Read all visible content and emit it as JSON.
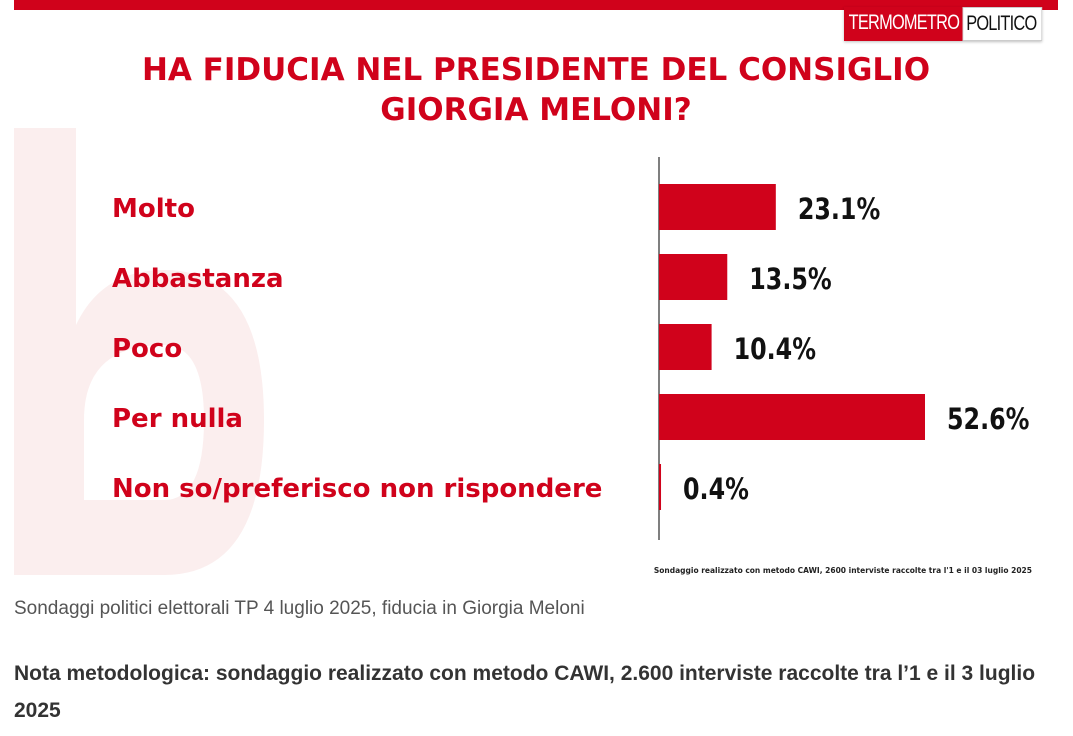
{
  "logo": {
    "part1": "TERMOMETRO",
    "part2": "POLITICO"
  },
  "chart_data": {
    "type": "bar",
    "orientation": "horizontal",
    "title_lines": [
      "HA FIDUCIA NEL PRESIDENTE DEL CONSIGLIO",
      "GIORGIA MELONI?"
    ],
    "categories": [
      "Molto",
      "Abbastanza",
      "Poco",
      "Per nulla",
      "Non so/preferisco non rispondere"
    ],
    "values": [
      23.1,
      13.5,
      10.4,
      52.6,
      0.4
    ],
    "value_labels": [
      "23.1%",
      "13.5%",
      "10.4%",
      "52.6%",
      "0.4%"
    ],
    "xlim": [
      0,
      60
    ],
    "unit": "%",
    "bar_color": "#d0021b",
    "label_color": "#d0021b",
    "source_note": "Sondaggio realizzato con metodo CAWI, 2600 interviste raccolte tra l'1 e il 03 luglio 2025"
  },
  "caption": "Sondaggi politici elettorali TP 4 luglio 2025, fiducia in Giorgia Meloni",
  "method_note": "Nota metodologica: sondaggio realizzato con metodo CAWI, 2.600 interviste raccolte tra l’1 e il 3 luglio 2025"
}
